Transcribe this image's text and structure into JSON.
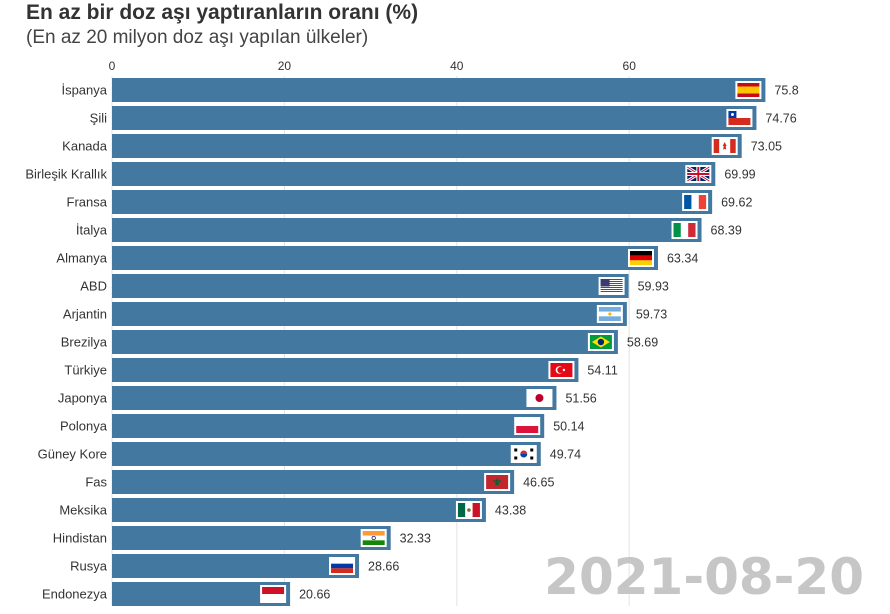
{
  "title": "En az bir doz aşı yaptıranların oranı (%)",
  "subtitle": "(En az 20 milyon doz aşı yapılan ülkeler)",
  "date_stamp": "2021-08-20",
  "colors": {
    "bar": "#4379a1",
    "grid": "#e3e3e3",
    "axis_text": "#333333",
    "label_text": "#333333"
  },
  "chart_data": {
    "type": "bar",
    "orientation": "horizontal",
    "xlim": [
      0,
      75.8
    ],
    "x_ticks": [
      0,
      20,
      40,
      60
    ],
    "x_tick_labels": [
      "0",
      "20",
      "40",
      "60"
    ],
    "grid": true,
    "categories": [
      "İspanya",
      "Şili",
      "Kanada",
      "Birleşik Krallık",
      "Fransa",
      "İtalya",
      "Almanya",
      "ABD",
      "Arjantin",
      "Brezilya",
      "Türkiye",
      "Japonya",
      "Polonya",
      "Güney Kore",
      "Fas",
      "Meksika",
      "Hindistan",
      "Rusya",
      "Endonezya"
    ],
    "values": [
      75.8,
      74.76,
      73.05,
      69.99,
      69.62,
      68.39,
      63.34,
      59.93,
      59.73,
      58.69,
      54.11,
      51.56,
      50.14,
      49.74,
      46.65,
      43.38,
      32.33,
      28.66,
      20.66
    ],
    "value_labels": [
      "75.8",
      "74.76",
      "73.05",
      "69.99",
      "69.62",
      "68.39",
      "63.34",
      "59.93",
      "59.73",
      "58.69",
      "54.11",
      "51.56",
      "50.14",
      "49.74",
      "46.65",
      "43.38",
      "32.33",
      "28.66",
      "20.66"
    ],
    "flag_icons": [
      "spain-flag-icon",
      "chile-flag-icon",
      "canada-flag-icon",
      "uk-flag-icon",
      "france-flag-icon",
      "italy-flag-icon",
      "germany-flag-icon",
      "usa-flag-icon",
      "argentina-flag-icon",
      "brazil-flag-icon",
      "turkey-flag-icon",
      "japan-flag-icon",
      "poland-flag-icon",
      "south-korea-flag-icon",
      "morocco-flag-icon",
      "mexico-flag-icon",
      "india-flag-icon",
      "russia-flag-icon",
      "indonesia-flag-icon"
    ]
  }
}
